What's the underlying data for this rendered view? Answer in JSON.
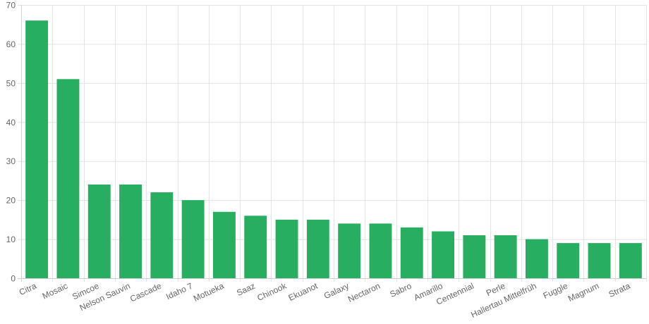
{
  "chart_data": {
    "type": "bar",
    "title": "",
    "xlabel": "",
    "ylabel": "",
    "ylim": [
      0,
      70
    ],
    "ytick_step": 10,
    "grid": true,
    "bar_color": "#27ae60",
    "categories": [
      "Citra",
      "Mosaic",
      "Simcoe",
      "Nelson Sauvin",
      "Cascade",
      "Idaho 7",
      "Motueka",
      "Saaz",
      "Chinook",
      "Ekuanot",
      "Galaxy",
      "Nectaron",
      "Sabro",
      "Amarillo",
      "Centennial",
      "Perle",
      "Hallertau Mittelfrüh",
      "Fuggle",
      "Magnum",
      "Strata"
    ],
    "values": [
      66,
      51,
      24,
      24,
      22,
      20,
      17,
      16,
      15,
      15,
      14,
      14,
      13,
      12,
      11,
      11,
      10,
      9,
      9,
      9
    ]
  }
}
